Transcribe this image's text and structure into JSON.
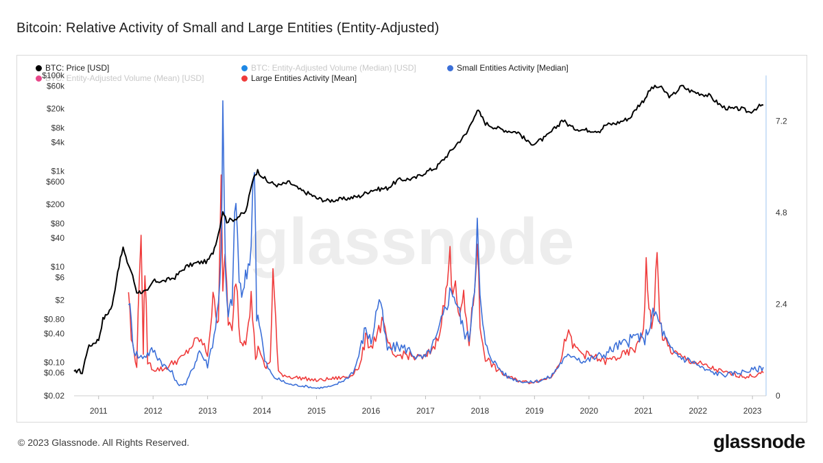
{
  "title": "Bitcoin: Relative Activity of Small and Large Entities (Entity-Adjusted)",
  "footer": "© 2023 Glassnode. All Rights Reserved.",
  "brand": "glassnode",
  "watermark": "glassnode",
  "legend": [
    {
      "label": "BTC: Price [USD]",
      "color": "#000000",
      "muted": false
    },
    {
      "label": "BTC: Entity-Adjusted Volume (Median) [USD]",
      "color": "#1e88e5",
      "muted": true
    },
    {
      "label": "Small Entities Activity [Median]",
      "color": "#3b6fd8",
      "muted": false
    },
    {
      "label": "BTC: Entity-Adjusted Volume (Mean) [USD]",
      "color": "#e8488a",
      "muted": true
    },
    {
      "label": "Large Entities Activity [Mean]",
      "color": "#ef3b3b",
      "muted": false
    }
  ],
  "chart_data": {
    "type": "line",
    "x_ticks": [
      "2011",
      "2012",
      "2013",
      "2014",
      "2015",
      "2016",
      "2017",
      "2018",
      "2019",
      "2020",
      "2021",
      "2022",
      "2023"
    ],
    "x_range": [
      2010.55,
      2023.25
    ],
    "y_left_log": true,
    "y_left_ticks": [
      "$0.02",
      "$0.06",
      "$0.10",
      "$0.40",
      "$0.80",
      "$2",
      "$6",
      "$10",
      "$40",
      "$80",
      "$200",
      "$600",
      "$1k",
      "$4k",
      "$8k",
      "$20k",
      "$60k",
      "$100k"
    ],
    "y_left_range": [
      0.02,
      100000
    ],
    "y_right_ticks": [
      "0",
      "2.4",
      "4.8",
      "7.2"
    ],
    "y_right_range": [
      0,
      8.4
    ],
    "series": [
      {
        "name": "BTC: Price [USD]",
        "axis": "left",
        "color": "#000000",
        "x": [
          2010.55,
          2010.62,
          2010.7,
          2010.8,
          2010.9,
          2011.0,
          2011.08,
          2011.15,
          2011.25,
          2011.35,
          2011.45,
          2011.5,
          2011.6,
          2011.7,
          2011.8,
          2011.9,
          2012.0,
          2012.2,
          2012.4,
          2012.6,
          2012.8,
          2013.0,
          2013.1,
          2013.2,
          2013.28,
          2013.35,
          2013.5,
          2013.7,
          2013.85,
          2013.92,
          2014.0,
          2014.1,
          2014.3,
          2014.5,
          2014.7,
          2014.9,
          2015.0,
          2015.2,
          2015.5,
          2015.8,
          2016.0,
          2016.3,
          2016.5,
          2016.8,
          2017.0,
          2017.2,
          2017.45,
          2017.6,
          2017.75,
          2017.9,
          2017.97,
          2018.1,
          2018.3,
          2018.5,
          2018.7,
          2018.88,
          2019.0,
          2019.2,
          2019.45,
          2019.5,
          2019.7,
          2019.9,
          2020.0,
          2020.2,
          2020.3,
          2020.5,
          2020.75,
          2020.9,
          2021.0,
          2021.15,
          2021.3,
          2021.5,
          2021.7,
          2021.85,
          2022.0,
          2022.2,
          2022.45,
          2022.6,
          2022.8,
          2022.95,
          2023.1,
          2023.2
        ],
        "values": [
          0.06,
          0.07,
          0.06,
          0.2,
          0.25,
          0.3,
          0.8,
          1,
          1.5,
          8,
          25,
          15,
          8,
          3,
          3,
          3,
          5,
          5,
          6,
          10,
          12,
          13,
          20,
          50,
          150,
          90,
          100,
          140,
          800,
          1000,
          800,
          600,
          500,
          580,
          400,
          320,
          270,
          240,
          260,
          300,
          400,
          440,
          650,
          700,
          950,
          1200,
          2500,
          4000,
          6000,
          15000,
          18000,
          10000,
          8000,
          7000,
          6500,
          4000,
          3800,
          5000,
          9500,
          12000,
          8000,
          7300,
          7200,
          7000,
          9200,
          10000,
          13000,
          23000,
          30000,
          55000,
          58000,
          35000,
          60000,
          48000,
          43000,
          38000,
          22000,
          20000,
          20000,
          17000,
          22000,
          24000
        ]
      },
      {
        "name": "Small Entities Activity [Median]",
        "axis": "right",
        "color": "#3b6fd8",
        "x": [
          2011.55,
          2011.65,
          2011.75,
          2011.9,
          2012.0,
          2012.2,
          2012.35,
          2012.45,
          2012.6,
          2012.75,
          2012.85,
          2013.0,
          2013.12,
          2013.2,
          2013.25,
          2013.28,
          2013.33,
          2013.38,
          2013.45,
          2013.52,
          2013.58,
          2013.65,
          2013.72,
          2013.8,
          2013.86,
          2013.9,
          2013.95,
          2014.05,
          2014.2,
          2014.5,
          2014.8,
          2015.0,
          2015.3,
          2015.55,
          2015.7,
          2015.8,
          2015.9,
          2016.0,
          2016.15,
          2016.3,
          2016.5,
          2016.7,
          2016.85,
          2017.0,
          2017.2,
          2017.35,
          2017.42,
          2017.5,
          2017.6,
          2017.7,
          2017.8,
          2017.9,
          2017.95,
          2018.0,
          2018.1,
          2018.3,
          2018.5,
          2018.7,
          2018.9,
          2019.1,
          2019.3,
          2019.5,
          2019.7,
          2019.9,
          2020.1,
          2020.3,
          2020.5,
          2020.7,
          2020.9,
          2021.0,
          2021.1,
          2021.2,
          2021.3,
          2021.4,
          2021.5,
          2021.7,
          2021.9,
          2022.1,
          2022.3,
          2022.5,
          2022.7,
          2022.9,
          2023.1,
          2023.2
        ],
        "values": [
          2.6,
          1.2,
          1.0,
          1.1,
          1.2,
          0.8,
          0.6,
          0.3,
          0.3,
          0.8,
          1.2,
          0.8,
          1.6,
          2.4,
          4.0,
          7.3,
          3.0,
          2.0,
          2.6,
          5.3,
          3.0,
          2.6,
          3.2,
          4.0,
          6.3,
          2.2,
          2.0,
          0.9,
          0.5,
          0.3,
          0.25,
          0.2,
          0.25,
          0.45,
          0.7,
          1.2,
          1.8,
          1.4,
          2.6,
          1.2,
          1.3,
          1.2,
          1.0,
          1.0,
          1.5,
          2.2,
          2.6,
          2.8,
          2.3,
          1.7,
          1.5,
          3.0,
          4.5,
          2.5,
          1.3,
          0.8,
          0.5,
          0.4,
          0.35,
          0.4,
          0.5,
          0.9,
          1.1,
          0.9,
          1.0,
          1.1,
          1.3,
          1.4,
          1.6,
          1.4,
          1.8,
          2.2,
          1.9,
          1.5,
          1.2,
          1.0,
          0.9,
          0.7,
          0.6,
          0.55,
          0.6,
          0.65,
          0.7,
          0.75
        ]
      },
      {
        "name": "Large Entities Activity [Mean]",
        "axis": "right",
        "color": "#ef3b3b",
        "x": [
          2011.55,
          2011.6,
          2011.7,
          2011.78,
          2011.82,
          2011.85,
          2011.9,
          2012.0,
          2012.2,
          2012.4,
          2012.55,
          2012.7,
          2012.85,
          2013.0,
          2013.1,
          2013.2,
          2013.25,
          2013.28,
          2013.32,
          2013.38,
          2013.45,
          2013.52,
          2013.6,
          2013.7,
          2013.8,
          2013.88,
          2013.95,
          2014.05,
          2014.15,
          2014.2,
          2014.3,
          2014.5,
          2014.8,
          2015.0,
          2015.3,
          2015.6,
          2015.8,
          2015.9,
          2016.0,
          2016.2,
          2016.4,
          2016.6,
          2016.8,
          2017.0,
          2017.2,
          2017.35,
          2017.45,
          2017.5,
          2017.55,
          2017.6,
          2017.7,
          2017.8,
          2017.9,
          2017.95,
          2018.0,
          2018.1,
          2018.3,
          2018.5,
          2018.7,
          2018.9,
          2019.1,
          2019.3,
          2019.5,
          2019.6,
          2019.7,
          2019.9,
          2020.1,
          2020.3,
          2020.5,
          2020.7,
          2020.9,
          2021.0,
          2021.05,
          2021.1,
          2021.15,
          2021.2,
          2021.25,
          2021.3,
          2021.35,
          2021.4,
          2021.5,
          2021.7,
          2021.9,
          2022.1,
          2022.3,
          2022.5,
          2022.7,
          2022.9,
          2023.1,
          2023.2
        ],
        "values": [
          2.8,
          1.5,
          0.8,
          4.6,
          1.0,
          3.5,
          0.9,
          0.7,
          0.7,
          0.9,
          1.0,
          1.3,
          1.5,
          1.1,
          2.5,
          2.0,
          6.2,
          2.5,
          3.8,
          2.0,
          1.6,
          3.2,
          1.4,
          1.5,
          2.6,
          1.0,
          1.3,
          0.7,
          0.9,
          3.3,
          0.6,
          0.5,
          0.45,
          0.4,
          0.45,
          0.5,
          0.8,
          1.5,
          1.3,
          1.9,
          1.0,
          1.1,
          1.0,
          1.0,
          1.4,
          2.4,
          3.6,
          2.9,
          3.2,
          2.0,
          2.5,
          1.4,
          2.8,
          4.2,
          1.8,
          1.0,
          0.7,
          0.5,
          0.4,
          0.35,
          0.4,
          0.5,
          1.0,
          1.7,
          1.3,
          1.1,
          1.0,
          0.9,
          1.0,
          1.1,
          1.3,
          1.8,
          3.4,
          2.4,
          1.7,
          2.5,
          3.6,
          2.0,
          1.6,
          1.4,
          1.2,
          1.0,
          0.9,
          0.8,
          0.7,
          0.6,
          0.55,
          0.5,
          0.55,
          0.6
        ]
      }
    ]
  }
}
